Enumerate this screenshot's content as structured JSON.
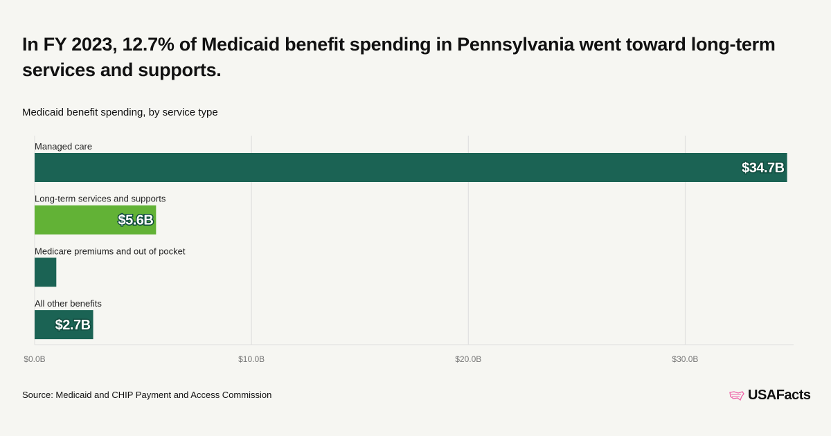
{
  "title": "In FY 2023, 12.7% of Medicaid benefit spending in Pennsylvania went toward long-term services and supports.",
  "subtitle": "Medicaid benefit spending, by service type",
  "source": "Source: Medicaid and CHIP Payment and Access Commission",
  "logo": "USAFacts",
  "colors": {
    "dark_green": "#1b6354",
    "light_green": "#62b236",
    "grid": "#dddddd",
    "logo_pink": "#ee5fa7"
  },
  "chart_data": {
    "type": "bar",
    "orientation": "horizontal",
    "title": "Medicaid benefit spending, by service type",
    "categories": [
      "Managed care",
      "Long-term services and supports",
      "Medicare premiums and out of pocket",
      "All other benefits"
    ],
    "values": [
      34.7,
      5.6,
      1.0,
      2.7
    ],
    "data_labels": [
      "$34.7B",
      "$5.6B",
      "",
      "$2.7B"
    ],
    "highlight": [
      false,
      true,
      false,
      false
    ],
    "unit": "billions USD",
    "xlim": [
      0,
      35
    ],
    "xticks": [
      0,
      10,
      20,
      30
    ],
    "xtick_labels": [
      "$0.0B",
      "$10.0B",
      "$20.0B",
      "$30.0B"
    ],
    "grid": true
  }
}
